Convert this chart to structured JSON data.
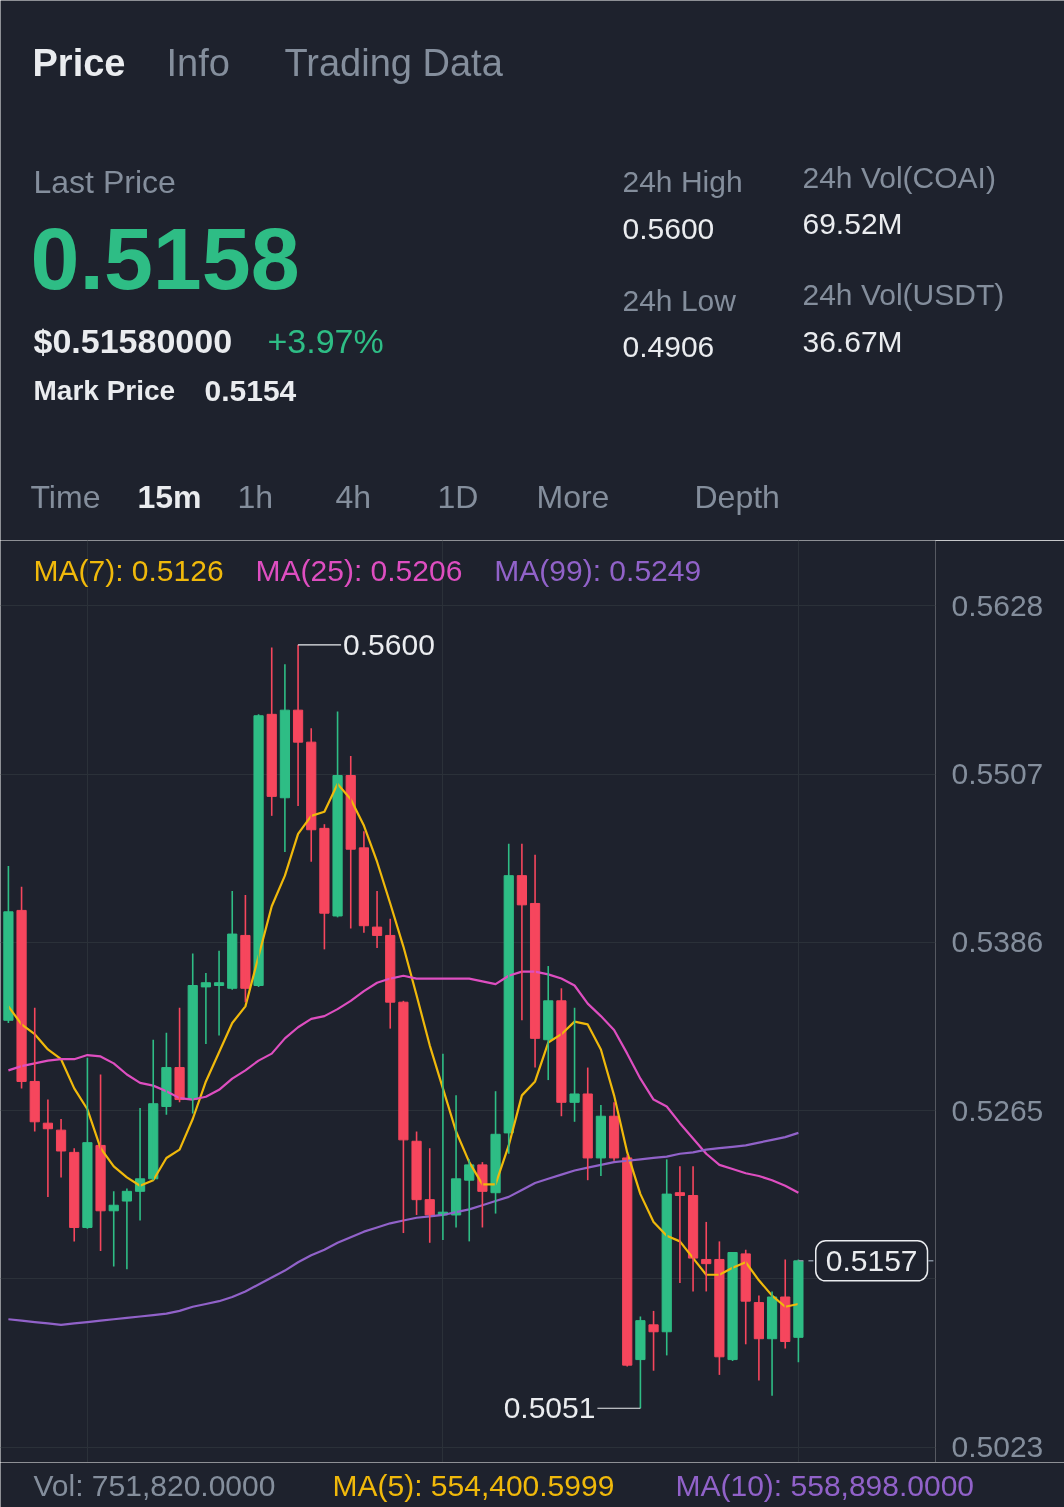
{
  "chart_data": {
    "type": "candlestick",
    "categories": [
      null,
      null,
      null,
      null,
      null,
      null,
      null,
      null,
      null,
      null,
      null,
      null,
      null,
      null,
      null,
      null,
      null,
      null,
      null,
      null,
      null,
      null,
      null,
      null,
      null,
      null,
      null,
      null,
      null,
      null,
      null,
      null,
      null,
      null,
      null,
      null,
      null,
      null,
      null,
      null,
      null,
      null,
      null,
      null,
      null,
      null,
      null,
      null,
      null,
      null,
      null,
      null,
      null,
      null,
      null,
      null,
      null,
      null,
      null,
      null,
      null
    ],
    "ohlc": [
      [
        0.533,
        0.5441,
        0.5328,
        0.5408
      ],
      [
        0.5409,
        0.5426,
        0.5281,
        0.5286
      ],
      [
        0.5286,
        0.5339,
        0.525,
        0.5257
      ],
      [
        0.5256,
        0.5273,
        0.5203,
        0.5252
      ],
      [
        0.5251,
        0.5259,
        0.5217,
        0.5236
      ],
      [
        0.5235,
        0.5238,
        0.5171,
        0.5181
      ],
      [
        0.5181,
        0.5303,
        0.518,
        0.5242
      ],
      [
        0.524,
        0.5291,
        0.5164,
        0.5193
      ],
      [
        0.5193,
        0.5207,
        0.5153,
        0.5197
      ],
      [
        0.52,
        0.5209,
        0.5151,
        0.5207
      ],
      [
        0.5207,
        0.5267,
        0.5186,
        0.5216
      ],
      [
        0.5216,
        0.5316,
        0.5215,
        0.527
      ],
      [
        0.5268,
        0.5321,
        0.5262,
        0.5296
      ],
      [
        0.5296,
        0.5339,
        0.5271,
        0.5273
      ],
      [
        0.5273,
        0.5378,
        0.5263,
        0.5355
      ],
      [
        0.5354,
        0.5364,
        0.5313,
        0.5357
      ],
      [
        0.5355,
        0.538,
        0.5319,
        0.5357
      ],
      [
        0.5353,
        0.5423,
        0.5352,
        0.5392
      ],
      [
        0.5391,
        0.542,
        0.5343,
        0.5353
      ],
      [
        0.5355,
        0.555,
        0.5354,
        0.5549
      ],
      [
        0.555,
        0.5598,
        0.5477,
        0.5491
      ],
      [
        0.549,
        0.5586,
        0.5451,
        0.5553
      ],
      [
        0.5553,
        0.56,
        0.5484,
        0.553
      ],
      [
        0.553,
        0.554,
        0.5444,
        0.5467
      ],
      [
        0.5468,
        0.5471,
        0.5381,
        0.5407
      ],
      [
        0.5405,
        0.5552,
        0.5404,
        0.5506
      ],
      [
        0.5506,
        0.552,
        0.5396,
        0.5453
      ],
      [
        0.5454,
        0.5466,
        0.5393,
        0.5398
      ],
      [
        0.5397,
        0.5423,
        0.5382,
        0.5391
      ],
      [
        0.5391,
        0.5403,
        0.5324,
        0.5343
      ],
      [
        0.5343,
        0.5344,
        0.5177,
        0.5244
      ],
      [
        0.5243,
        0.525,
        0.519,
        0.5201
      ],
      [
        0.5201,
        0.5238,
        0.517,
        0.519
      ],
      [
        0.519,
        0.5306,
        0.5172,
        0.5192
      ],
      [
        0.519,
        0.5276,
        0.5181,
        0.5216
      ],
      [
        0.5215,
        0.523,
        0.5171,
        0.5226
      ],
      [
        0.5226,
        0.5228,
        0.5181,
        0.5207
      ],
      [
        0.5206,
        0.5279,
        0.5191,
        0.5248
      ],
      [
        0.5249,
        0.5457,
        0.5234,
        0.5434
      ],
      [
        0.5434,
        0.5457,
        0.533,
        0.5413
      ],
      [
        0.5414,
        0.5449,
        0.5296,
        0.5317
      ],
      [
        0.5316,
        0.5369,
        0.5287,
        0.5344
      ],
      [
        0.5344,
        0.5353,
        0.5261,
        0.5271
      ],
      [
        0.5271,
        0.5339,
        0.5257,
        0.5277
      ],
      [
        0.5277,
        0.5296,
        0.5215,
        0.5231
      ],
      [
        0.5231,
        0.5269,
        0.5218,
        0.5261
      ],
      [
        0.5261,
        0.5271,
        0.5229,
        0.5231
      ],
      [
        0.5231,
        0.5233,
        0.5081,
        0.5082
      ],
      [
        0.5086,
        0.5117,
        0.5051,
        0.5114
      ],
      [
        0.5111,
        0.5121,
        0.5078,
        0.5106
      ],
      [
        0.5106,
        0.523,
        0.5089,
        0.5205
      ],
      [
        0.5206,
        0.5225,
        0.5141,
        0.5204
      ],
      [
        0.5204,
        0.5225,
        0.5135,
        0.5159
      ],
      [
        0.5158,
        0.5185,
        0.5135,
        0.5155
      ],
      [
        0.5158,
        0.5171,
        0.5075,
        0.5088
      ],
      [
        0.5086,
        0.5163,
        0.5085,
        0.5163
      ],
      [
        0.5162,
        0.5165,
        0.5097,
        0.5128
      ],
      [
        0.5127,
        0.5132,
        0.5071,
        0.5101
      ],
      [
        0.5101,
        0.5135,
        0.506,
        0.5131
      ],
      [
        0.5131,
        0.5158,
        0.5094,
        0.5099
      ],
      [
        0.5102,
        0.5158,
        0.5084,
        0.5157
      ]
    ],
    "colors": [
      "#2ebd85",
      "#f6465d",
      "#f6465d",
      "#f6465d",
      "#f6465d",
      "#f6465d",
      "#2ebd85",
      "#f6465d",
      "#2ebd85",
      "#2ebd85",
      "#2ebd85",
      "#2ebd85",
      "#2ebd85",
      "#f6465d",
      "#2ebd85",
      "#2ebd85",
      "#2ebd85",
      "#2ebd85",
      "#f6465d",
      "#2ebd85",
      "#f6465d",
      "#2ebd85",
      "#f6465d",
      "#f6465d",
      "#f6465d",
      "#2ebd85",
      "#f6465d",
      "#f6465d",
      "#f6465d",
      "#f6465d",
      "#f6465d",
      "#f6465d",
      "#f6465d",
      "#2ebd85",
      "#2ebd85",
      "#2ebd85",
      "#f6465d",
      "#2ebd85",
      "#2ebd85",
      "#f6465d",
      "#f6465d",
      "#2ebd85",
      "#f6465d",
      "#2ebd85",
      "#f6465d",
      "#2ebd85",
      "#f6465d",
      "#f6465d",
      "#2ebd85",
      "#f6465d",
      "#2ebd85",
      "#f6465d",
      "#f6465d",
      "#f6465d",
      "#f6465d",
      "#2ebd85",
      "#f6465d",
      "#f6465d",
      "#2ebd85",
      "#f6465d",
      "#2ebd85"
    ],
    "series": [
      {
        "name": "MA(7): 0.5126",
        "type": "line",
        "color": "#f0b90b",
        "values": [
          0.534,
          0.5327,
          0.532,
          0.5309,
          0.5302,
          0.5281,
          0.5266,
          0.5238,
          0.5225,
          0.5217,
          0.5211,
          0.5215,
          0.5231,
          0.5237,
          0.5259,
          0.5286,
          0.5307,
          0.5328,
          0.534,
          0.5376,
          0.5412,
          0.5434,
          0.5464,
          0.5477,
          0.548,
          0.55,
          0.5489,
          0.547,
          0.5444,
          0.5414,
          0.5383,
          0.5348,
          0.5312,
          0.5281,
          0.525,
          0.5228,
          0.5212,
          0.5212,
          0.524,
          0.5276,
          0.5286,
          0.5314,
          0.532,
          0.5329,
          0.5327,
          0.5309,
          0.5276,
          0.5235,
          0.5205,
          0.5185,
          0.5175,
          0.5171,
          0.5159,
          0.5147,
          0.5147,
          0.5152,
          0.5156,
          0.5143,
          0.5132,
          0.5124,
          0.5126
        ]
      },
      {
        "name": "MA(25): 0.5206",
        "type": "line",
        "color": "#de4ec0",
        "values": [
          0.5294,
          0.5297,
          0.5299,
          0.5301,
          0.5302,
          0.5302,
          0.5305,
          0.5304,
          0.5299,
          0.5291,
          0.5285,
          0.5283,
          0.5279,
          0.5274,
          0.5273,
          0.5275,
          0.528,
          0.5288,
          0.5294,
          0.5301,
          0.5306,
          0.5317,
          0.5325,
          0.5331,
          0.5333,
          0.5338,
          0.5344,
          0.5351,
          0.5357,
          0.536,
          0.5362,
          0.536,
          0.536,
          0.536,
          0.536,
          0.536,
          0.5358,
          0.5356,
          0.5362,
          0.5365,
          0.5365,
          0.5363,
          0.536,
          0.5355,
          0.5342,
          0.5333,
          0.5323,
          0.5306,
          0.5288,
          0.5273,
          0.5268,
          0.5256,
          0.5245,
          0.5234,
          0.5226,
          0.5223,
          0.522,
          0.5218,
          0.5215,
          0.5211,
          0.5206
        ]
      },
      {
        "name": "MA(99): 0.5249",
        "type": "line",
        "color": "#9162c9",
        "values": [
          0.5115,
          0.5114,
          0.5113,
          0.5112,
          0.5111,
          0.5112,
          0.5113,
          0.5114,
          0.5115,
          0.5116,
          0.5117,
          0.5118,
          0.5119,
          0.5121,
          0.5124,
          0.5126,
          0.5128,
          0.5131,
          0.5135,
          0.514,
          0.5145,
          0.515,
          0.5156,
          0.5161,
          0.5165,
          0.517,
          0.5174,
          0.5178,
          0.5181,
          0.5184,
          0.5186,
          0.5188,
          0.5189,
          0.519,
          0.5192,
          0.5194,
          0.5197,
          0.52,
          0.5203,
          0.5208,
          0.5213,
          0.5216,
          0.5219,
          0.5222,
          0.5224,
          0.5226,
          0.5228,
          0.5229,
          0.523,
          0.5231,
          0.5232,
          0.5234,
          0.5235,
          0.5237,
          0.5238,
          0.5239,
          0.524,
          0.5242,
          0.5244,
          0.5246,
          0.5249
        ]
      }
    ],
    "ylim": [
      0.5012,
      0.5675
    ],
    "yticks": [
      0.5023,
      {
        "value": 0.5144,
        "label": null
      },
      0.5265,
      0.5386,
      0.5507,
      0.5628
    ],
    "grid": true,
    "legend": "top",
    "tick_labels": "y",
    "ref_lines": [
      {
        "axis": "y",
        "value": 0.5157,
        "label": "0.5157",
        "line_style": "dashed",
        "color": "#848e9c"
      }
    ],
    "annotations": [
      "Price",
      "Info",
      "Trading Data",
      "Last Price",
      "0.5158",
      "$0.51580000",
      "+3.97%",
      "Mark Price",
      "0.5154",
      "24h High",
      "0.5600",
      "24h Low",
      "0.4906",
      "24h Vol(COAI)",
      "69.52M",
      "24h Vol(USDT)",
      "36.67M",
      "Time",
      "15m",
      "1h",
      "4h",
      "1D",
      "More",
      "Depth",
      "0.5600",
      "0.5051",
      "Vol: 751,820.0000",
      "MA(5): 554,400.5999",
      "MA(10): 558,898.0000"
    ]
  }
}
